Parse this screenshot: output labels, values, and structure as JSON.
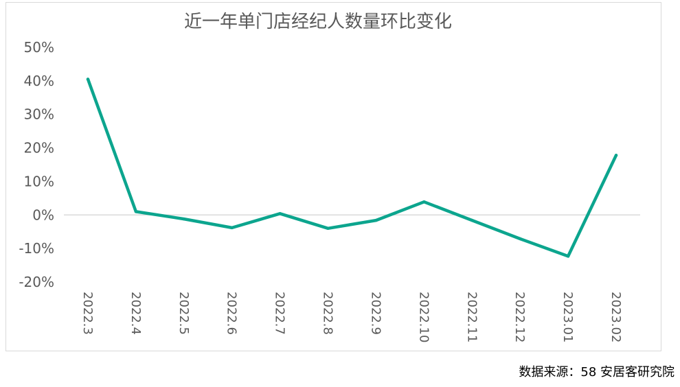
{
  "chart_data": {
    "type": "line",
    "title": "近一年单门店经纪人数量环比变化",
    "xlabel": "",
    "ylabel": "",
    "categories": [
      "2022.3",
      "2022.4",
      "2022.5",
      "2022.6",
      "2022.7",
      "2022.8",
      "2022.9",
      "2022.10",
      "2022.11",
      "2022.12",
      "2023.01",
      "2023.02"
    ],
    "series": [
      {
        "values": [
          40.5,
          1.0,
          -1.2,
          -3.8,
          0.4,
          -4.0,
          -1.6,
          3.9,
          -1.6,
          -7.1,
          -12.3,
          17.8
        ]
      }
    ],
    "ylim": [
      -20,
      50
    ],
    "yticks": [
      50,
      40,
      30,
      20,
      10,
      0,
      -10,
      -20
    ],
    "ytick_labels": [
      "50%",
      "40%",
      "30%",
      "20%",
      "10%",
      "0%",
      "-10%",
      "-20%"
    ],
    "grid": false,
    "legend": "none",
    "colors": {
      "line": "#0ca58e",
      "zero_line": "#d9d9d9",
      "text": "#595959",
      "border": "#d9d9d9"
    }
  },
  "source": "数据来源：58 安居客研究院"
}
